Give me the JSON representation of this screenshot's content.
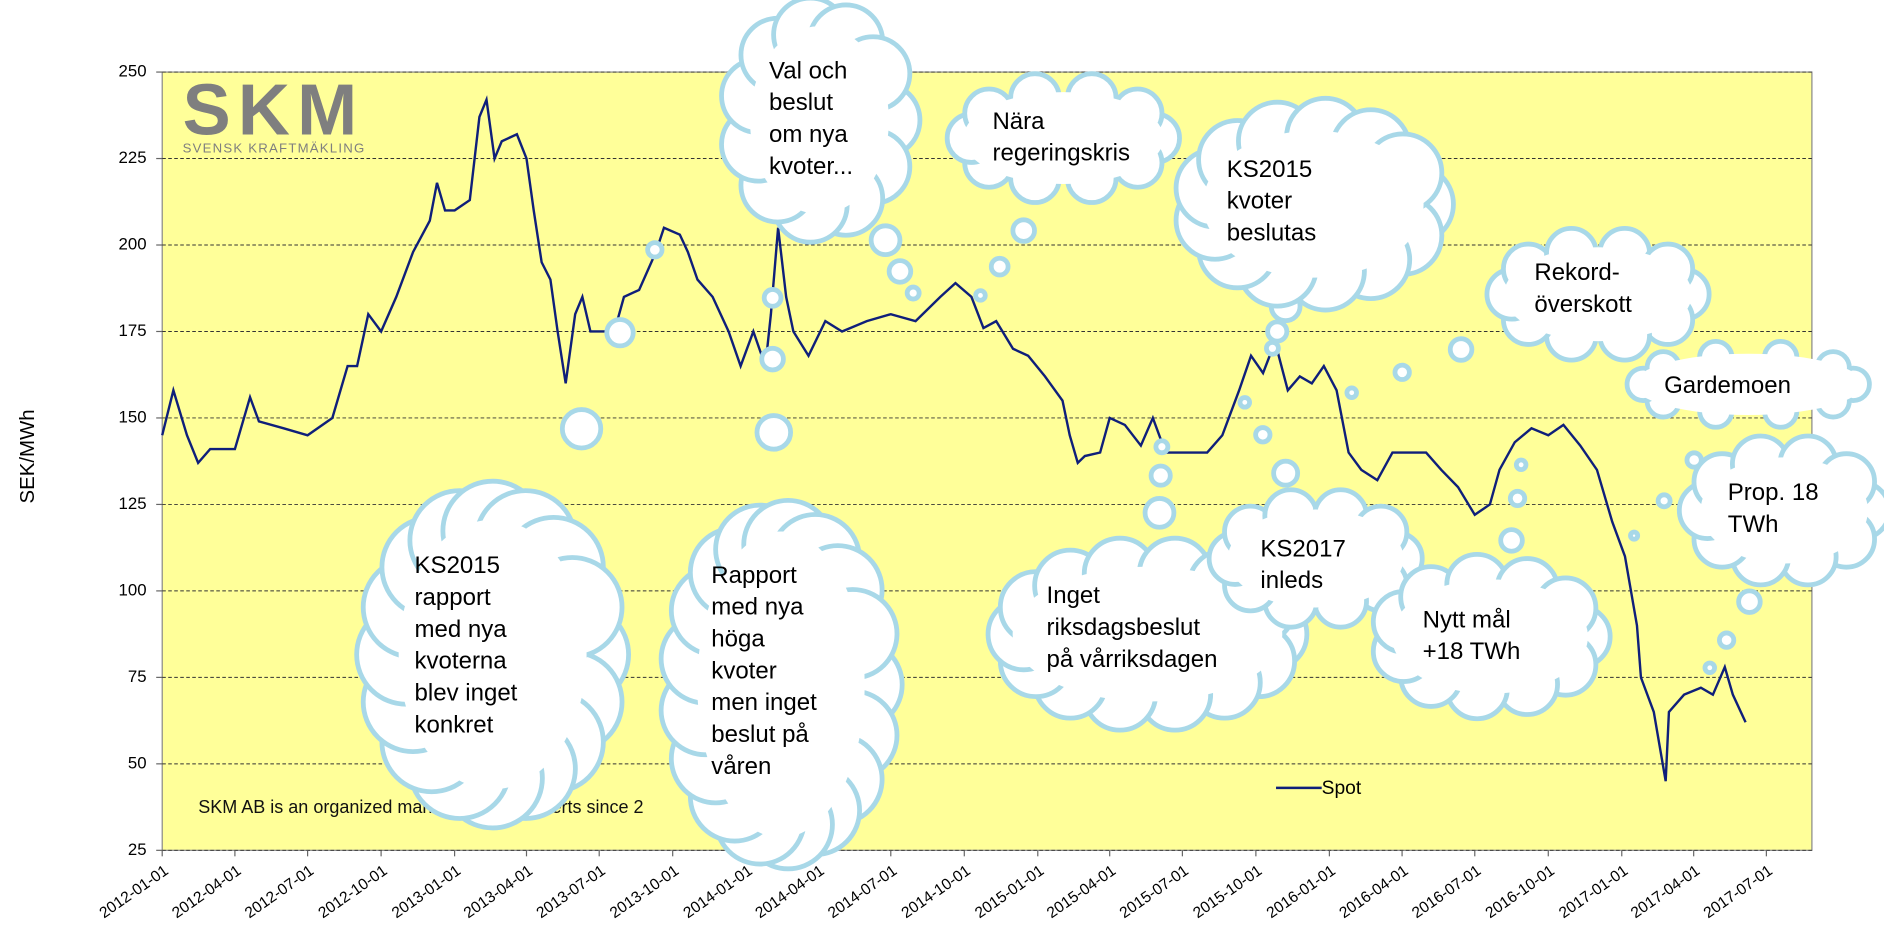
{
  "chart_data": {
    "type": "line",
    "ylabel": "SEK/MWh",
    "logo": {
      "title": "SKM",
      "subtitle": "SVENSK KRAFTMÄKLING"
    },
    "note": "SKM AB is an organized marketplace for Elcerts since 2",
    "xlim": [
      "2012-01-01",
      "2017-08-27"
    ],
    "xticks": [
      "2012-01-01",
      "2012-04-01",
      "2012-07-01",
      "2012-10-01",
      "2013-01-01",
      "2013-04-01",
      "2013-07-01",
      "2013-10-01",
      "2014-01-01",
      "2014-04-01",
      "2014-07-01",
      "2014-10-01",
      "2015-01-01",
      "2015-04-01",
      "2015-07-01",
      "2015-10-01",
      "2016-01-01",
      "2016-04-01",
      "2016-07-01",
      "2016-10-01",
      "2017-01-01",
      "2017-04-01",
      "2017-07-01"
    ],
    "ylim": [
      25,
      250
    ],
    "yticks": [
      25,
      50,
      75,
      100,
      125,
      150,
      175,
      200,
      225,
      250
    ],
    "grid": true,
    "x": [
      "2012-01-01",
      "2012-01-15",
      "2012-02-01",
      "2012-02-15",
      "2012-03-01",
      "2012-04-01",
      "2012-04-20",
      "2012-05-01",
      "2012-06-01",
      "2012-07-01",
      "2012-08-01",
      "2012-08-20",
      "2012-09-01",
      "2012-09-15",
      "2012-10-01",
      "2012-10-20",
      "2012-11-10",
      "2012-12-01",
      "2012-12-10",
      "2012-12-20",
      "2013-01-01",
      "2013-01-20",
      "2013-02-01",
      "2013-02-10",
      "2013-02-20",
      "2013-03-01",
      "2013-03-20",
      "2013-04-01",
      "2013-04-10",
      "2013-04-20",
      "2013-05-01",
      "2013-05-10",
      "2013-05-20",
      "2013-06-01",
      "2013-06-10",
      "2013-06-20",
      "2013-07-01",
      "2013-07-20",
      "2013-08-01",
      "2013-08-20",
      "2013-09-10",
      "2013-09-20",
      "2013-10-10",
      "2013-10-20",
      "2013-11-01",
      "2013-11-20",
      "2013-12-10",
      "2013-12-25",
      "2014-01-10",
      "2014-01-25",
      "2014-02-01",
      "2014-02-10",
      "2014-02-20",
      "2014-03-01",
      "2014-03-20",
      "2014-04-10",
      "2014-05-01",
      "2014-06-01",
      "2014-07-01",
      "2014-08-01",
      "2014-09-01",
      "2014-09-20",
      "2014-10-10",
      "2014-10-25",
      "2014-11-10",
      "2014-12-01",
      "2014-12-20",
      "2015-01-10",
      "2015-02-01",
      "2015-02-10",
      "2015-02-20",
      "2015-03-01",
      "2015-03-20",
      "2015-04-01",
      "2015-04-20",
      "2015-05-10",
      "2015-05-25",
      "2015-06-10",
      "2015-07-01",
      "2015-08-01",
      "2015-08-20",
      "2015-09-10",
      "2015-09-25",
      "2015-10-10",
      "2015-10-25",
      "2015-11-10",
      "2015-11-25",
      "2015-12-10",
      "2015-12-25",
      "2016-01-10",
      "2016-01-25",
      "2016-02-10",
      "2016-03-01",
      "2016-03-20",
      "2016-04-10",
      "2016-05-01",
      "2016-05-20",
      "2016-06-10",
      "2016-07-01",
      "2016-07-20",
      "2016-08-01",
      "2016-08-20",
      "2016-09-10",
      "2016-10-01",
      "2016-10-20",
      "2016-11-10",
      "2016-12-01",
      "2016-12-20",
      "2017-01-05",
      "2017-01-20",
      "2017-01-25",
      "2017-02-10",
      "2017-02-25",
      "2017-03-01",
      "2017-03-20",
      "2017-04-10",
      "2017-04-25",
      "2017-05-10",
      "2017-05-20",
      "2017-06-05"
    ],
    "series": [
      {
        "name": "Spot",
        "color": "#0f1f7a",
        "values": [
          145,
          158,
          145,
          137,
          141,
          141,
          156,
          149,
          147,
          145,
          150,
          165,
          165,
          180,
          175,
          185,
          198,
          207,
          218,
          210,
          210,
          213,
          237,
          242,
          225,
          230,
          232,
          225,
          210,
          195,
          190,
          175,
          160,
          180,
          185,
          175,
          175,
          175,
          185,
          187,
          198,
          205,
          203,
          198,
          190,
          185,
          175,
          165,
          175,
          165,
          180,
          205,
          185,
          175,
          168,
          178,
          175,
          178,
          180,
          178,
          185,
          189,
          185,
          176,
          178,
          170,
          168,
          162,
          155,
          145,
          137,
          139,
          140,
          150,
          148,
          142,
          150,
          140,
          140,
          140,
          145,
          158,
          168,
          163,
          172,
          158,
          162,
          160,
          165,
          158,
          140,
          135,
          132,
          140,
          140,
          140,
          135,
          130,
          122,
          125,
          135,
          143,
          147,
          145,
          148,
          142,
          135,
          120,
          110,
          90,
          75,
          65,
          45,
          65,
          70,
          72,
          70,
          78,
          70,
          62
        ]
      }
    ],
    "annotations": [
      [
        "Val och",
        "beslut",
        "om nya",
        "kvoter..."
      ],
      [
        "Nära",
        "regeringskris"
      ],
      [
        "KS2015",
        "kvoter",
        "beslutas"
      ],
      [
        "Rekord-",
        "överskott"
      ],
      [
        "Gardemoen"
      ],
      [
        "Prop. 18",
        "TWh"
      ],
      [
        "KS2015",
        "rapport",
        "med nya",
        "kvoterna",
        "blev inget",
        "konkret"
      ],
      [
        "Rapport",
        "med nya",
        "höga",
        "kvoter",
        "men inget",
        "beslut på",
        "våren"
      ],
      [
        "Inget",
        "riksdagsbeslut",
        "på vårriksdagen"
      ],
      [
        "KS2017",
        "inleds"
      ],
      [
        "Nytt mål",
        "+18 TWh"
      ]
    ]
  }
}
